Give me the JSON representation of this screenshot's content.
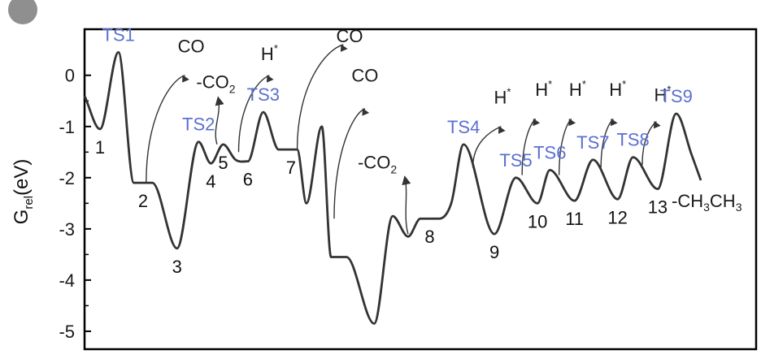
{
  "chart_data": {
    "type": "line",
    "title": "",
    "ylabel_main": "G",
    "ylabel_sub": "rel",
    "ylabel_unit": "(eV)",
    "ylim": [
      -5.35,
      0.9
    ],
    "y_ticks": [
      "0",
      "-1",
      "-2",
      "-3",
      "-4",
      "-5"
    ],
    "y_tick_values": [
      0,
      -1,
      -2,
      -3,
      -4,
      -5
    ],
    "grid": false,
    "colors": {
      "line": "#333333",
      "ts": "#5b6fd0",
      "axis": "#000000"
    },
    "profile": [
      [
        0.0,
        -0.4
      ],
      [
        0.025,
        -1.05
      ],
      [
        0.055,
        0.45
      ],
      [
        0.08,
        -2.1
      ],
      [
        0.11,
        -2.1
      ],
      [
        0.15,
        -3.38
      ],
      [
        0.185,
        -1.3
      ],
      [
        0.205,
        -1.72
      ],
      [
        0.225,
        -1.35
      ],
      [
        0.245,
        -1.65
      ],
      [
        0.265,
        -1.68
      ],
      [
        0.29,
        -0.72
      ],
      [
        0.315,
        -1.45
      ],
      [
        0.345,
        -1.45
      ],
      [
        0.36,
        -2.5
      ],
      [
        0.385,
        -1.0
      ],
      [
        0.4,
        -3.55
      ],
      [
        0.425,
        -3.55
      ],
      [
        0.47,
        -4.85
      ],
      [
        0.5,
        -2.75
      ],
      [
        0.525,
        -3.15
      ],
      [
        0.545,
        -2.8
      ],
      [
        0.575,
        -2.8
      ],
      [
        0.595,
        -2.5
      ],
      [
        0.615,
        -1.35
      ],
      [
        0.665,
        -3.1
      ],
      [
        0.7,
        -2.0
      ],
      [
        0.735,
        -2.5
      ],
      [
        0.755,
        -1.85
      ],
      [
        0.795,
        -2.45
      ],
      [
        0.825,
        -1.65
      ],
      [
        0.865,
        -2.42
      ],
      [
        0.89,
        -1.6
      ],
      [
        0.93,
        -2.22
      ],
      [
        0.96,
        -0.75
      ],
      [
        0.985,
        -1.55
      ],
      [
        1.0,
        -2.05
      ]
    ],
    "states": [
      {
        "label": "1",
        "kind": "intermediate",
        "x": 0.025,
        "y": -1.05
      },
      {
        "label": "2",
        "kind": "intermediate",
        "x": 0.095,
        "y": -2.1
      },
      {
        "label": "3",
        "kind": "intermediate",
        "x": 0.15,
        "y": -3.38
      },
      {
        "label": "4",
        "kind": "intermediate",
        "x": 0.205,
        "y": -1.72
      },
      {
        "label": "5",
        "kind": "intermediate",
        "x": 0.225,
        "y": -1.35
      },
      {
        "label": "6",
        "kind": "intermediate",
        "x": 0.265,
        "y": -1.68
      },
      {
        "label": "7",
        "kind": "intermediate",
        "x": 0.335,
        "y": -1.45
      },
      {
        "label": "8",
        "kind": "intermediate",
        "x": 0.56,
        "y": -2.8
      },
      {
        "label": "9",
        "kind": "intermediate",
        "x": 0.665,
        "y": -3.1
      },
      {
        "label": "10",
        "kind": "intermediate",
        "x": 0.735,
        "y": -2.5
      },
      {
        "label": "11",
        "kind": "intermediate",
        "x": 0.795,
        "y": -2.45
      },
      {
        "label": "12",
        "kind": "intermediate",
        "x": 0.865,
        "y": -2.42
      },
      {
        "label": "13",
        "kind": "intermediate",
        "x": 0.93,
        "y": -2.22
      },
      {
        "label": "TS1",
        "kind": "ts",
        "x": 0.055,
        "y": 0.45
      },
      {
        "label": "TS2",
        "kind": "ts",
        "x": 0.185,
        "y": -1.3
      },
      {
        "label": "TS3",
        "kind": "ts",
        "x": 0.29,
        "y": -0.72
      },
      {
        "label": "TS4",
        "kind": "ts",
        "x": 0.615,
        "y": -1.35
      },
      {
        "label": "TS5",
        "kind": "ts",
        "x": 0.7,
        "y": -2.0
      },
      {
        "label": "TS6",
        "kind": "ts",
        "x": 0.755,
        "y": -1.85
      },
      {
        "label": "TS7",
        "kind": "ts",
        "x": 0.825,
        "y": -1.65
      },
      {
        "label": "TS8",
        "kind": "ts",
        "x": 0.89,
        "y": -1.6
      },
      {
        "label": "TS9",
        "kind": "ts",
        "x": 0.96,
        "y": -0.75
      }
    ],
    "annotations": [
      {
        "text": "CO",
        "sup": "",
        "sub": "",
        "direction": "in",
        "from": [
          0.1,
          -2.1
        ],
        "to": [
          0.163,
          0.0
        ],
        "text_at": [
          0.173,
          0.45
        ]
      },
      {
        "text": "-CO",
        "sup": "",
        "sub": "2",
        "direction": "out",
        "from": [
          0.215,
          -1.35
        ],
        "to": [
          0.217,
          -0.45
        ],
        "text_at": [
          0.213,
          -0.25
        ]
      },
      {
        "text": "H",
        "sup": "*",
        "sub": "",
        "direction": "in",
        "from": [
          0.25,
          -1.5
        ],
        "to": [
          0.3,
          0.0
        ],
        "text_at": [
          0.3,
          0.3
        ]
      },
      {
        "text": "CO",
        "sup": "",
        "sub": "",
        "direction": "in",
        "from": [
          0.345,
          -1.45
        ],
        "to": [
          0.42,
          0.6
        ],
        "text_at": [
          0.43,
          0.65
        ]
      },
      {
        "text": "CO",
        "sup": "",
        "sub": "",
        "direction": "in",
        "from": [
          0.405,
          -2.8
        ],
        "to": [
          0.455,
          -0.65
        ],
        "text_at": [
          0.455,
          -0.12
        ]
      },
      {
        "text": "-CO",
        "sup": "",
        "sub": "2",
        "direction": "out",
        "from": [
          0.525,
          -3.1
        ],
        "to": [
          0.52,
          -2.0
        ],
        "text_at": [
          0.475,
          -1.82
        ]
      },
      {
        "text": "H",
        "sup": "*",
        "sub": "",
        "direction": "in",
        "from": [
          0.63,
          -1.8
        ],
        "to": [
          0.676,
          -1.0
        ],
        "text_at": [
          0.678,
          -0.55
        ]
      },
      {
        "text": "H",
        "sup": "*",
        "sub": "",
        "direction": "in",
        "from": [
          0.71,
          -1.95
        ],
        "to": [
          0.732,
          -0.85
        ],
        "text_at": [
          0.745,
          -0.4
        ]
      },
      {
        "text": "H",
        "sup": "*",
        "sub": "",
        "direction": "in",
        "from": [
          0.77,
          -1.95
        ],
        "to": [
          0.79,
          -0.85
        ],
        "text_at": [
          0.8,
          -0.4
        ]
      },
      {
        "text": "H",
        "sup": "*",
        "sub": "",
        "direction": "in",
        "from": [
          0.838,
          -1.8
        ],
        "to": [
          0.858,
          -0.85
        ],
        "text_at": [
          0.865,
          -0.4
        ]
      },
      {
        "text": "H",
        "sup": "*",
        "sub": "",
        "direction": "in",
        "from": [
          0.905,
          -1.75
        ],
        "to": [
          0.928,
          -0.9
        ],
        "text_at": [
          0.938,
          -0.5
        ]
      }
    ],
    "product_label": "-CH",
    "product_sub1": "3",
    "product_mid": "CH",
    "product_sub2": "3"
  }
}
